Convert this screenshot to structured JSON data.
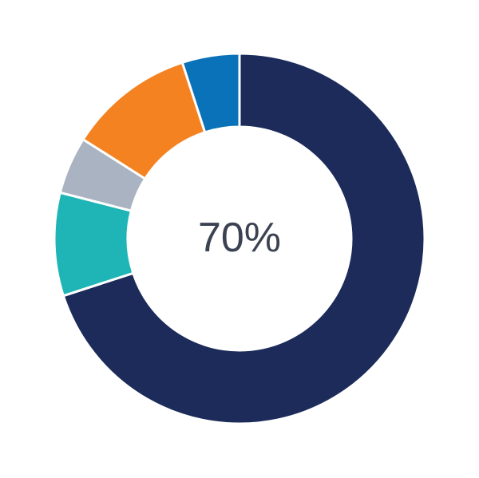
{
  "chart_data": {
    "type": "pie",
    "variant": "donut",
    "center_label": "70%",
    "start": "top",
    "direction": "clockwise",
    "slices": [
      {
        "value": 70,
        "color": "#1c2b5a"
      },
      {
        "value": 9,
        "color": "#1fb5b6"
      },
      {
        "value": 5,
        "color": "#a9b3c1"
      },
      {
        "value": 11,
        "color": "#f58220"
      },
      {
        "value": 5,
        "color": "#0a72b8"
      }
    ]
  }
}
